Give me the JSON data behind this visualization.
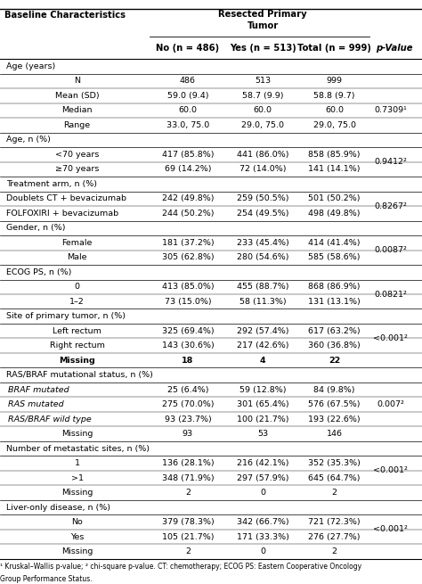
{
  "col_headers_row1": [
    "Baseline Characteristics",
    "Resected Primary\nTumor",
    "",
    "",
    ""
  ],
  "col_headers_row2": [
    "",
    "No (n = 486)",
    "Yes (n = 513)",
    "Total (n = 999)",
    "p-Value"
  ],
  "rows": [
    {
      "label": "Age (years)",
      "type": "section",
      "no": "",
      "yes": "",
      "total": "",
      "pval": ""
    },
    {
      "label": "N",
      "type": "data_center",
      "no": "486",
      "yes": "513",
      "total": "999",
      "pval": ""
    },
    {
      "label": "Mean (SD)",
      "type": "data_center",
      "no": "59.0 (9.4)",
      "yes": "58.7 (9.9)",
      "total": "58.8 (9.7)",
      "pval": "0.7309 1"
    },
    {
      "label": "Median",
      "type": "data_center",
      "no": "60.0",
      "yes": "60.0",
      "total": "60.0",
      "pval": ""
    },
    {
      "label": "Range",
      "type": "data_center",
      "no": "33.0, 75.0",
      "yes": "29.0, 75.0",
      "total": "29.0, 75.0",
      "pval": ""
    },
    {
      "label": "Age, n (%)",
      "type": "section",
      "no": "",
      "yes": "",
      "total": "",
      "pval": ""
    },
    {
      "label": "<70 years",
      "type": "data_center",
      "no": "417 (85.8%)",
      "yes": "441 (86.0%)",
      "total": "858 (85.9%)",
      "pval": "0.9412 2"
    },
    {
      "label": "≥70 years",
      "type": "data_center",
      "no": "69 (14.2%)",
      "yes": "72 (14.0%)",
      "total": "141 (14.1%)",
      "pval": ""
    },
    {
      "label": "Treatment arm, n (%)",
      "type": "section",
      "no": "",
      "yes": "",
      "total": "",
      "pval": ""
    },
    {
      "label": "Doublets CT + bevacizumab",
      "type": "data_left",
      "no": "242 (49.8%)",
      "yes": "259 (50.5%)",
      "total": "501 (50.2%)",
      "pval": "0.8267 2"
    },
    {
      "label": "FOLFOXIRI + bevacizumab",
      "type": "data_left",
      "no": "244 (50.2%)",
      "yes": "254 (49.5%)",
      "total": "498 (49.8%)",
      "pval": ""
    },
    {
      "label": "Gender, n (%)",
      "type": "section",
      "no": "",
      "yes": "",
      "total": "",
      "pval": ""
    },
    {
      "label": "Female",
      "type": "data_center",
      "no": "181 (37.2%)",
      "yes": "233 (45.4%)",
      "total": "414 (41.4%)",
      "pval": "0.0087 2"
    },
    {
      "label": "Male",
      "type": "data_center",
      "no": "305 (62.8%)",
      "yes": "280 (54.6%)",
      "total": "585 (58.6%)",
      "pval": ""
    },
    {
      "label": "ECOG PS, n (%)",
      "type": "section",
      "no": "",
      "yes": "",
      "total": "",
      "pval": ""
    },
    {
      "label": "0",
      "type": "data_center",
      "no": "413 (85.0%)",
      "yes": "455 (88.7%)",
      "total": "868 (86.9%)",
      "pval": "0.0821 2"
    },
    {
      "label": "1–2",
      "type": "data_center",
      "no": "73 (15.0%)",
      "yes": "58 (11.3%)",
      "total": "131 (13.1%)",
      "pval": ""
    },
    {
      "label": "Site of primary tumor, n (%)",
      "type": "section",
      "no": "",
      "yes": "",
      "total": "",
      "pval": ""
    },
    {
      "label": "Left rectum",
      "type": "data_center",
      "no": "325 (69.4%)",
      "yes": "292 (57.4%)",
      "total": "617 (63.2%)",
      "pval": "<0.001 2"
    },
    {
      "label": "Right rectum",
      "type": "data_center",
      "no": "143 (30.6%)",
      "yes": "217 (42.6%)",
      "total": "360 (36.8%)",
      "pval": ""
    },
    {
      "label": "Missing",
      "type": "data_center_bold",
      "no": "18",
      "yes": "4",
      "total": "22",
      "pval": ""
    },
    {
      "label": "RAS/BRAF mutational status, n (%)",
      "type": "section_italic_prefix",
      "no": "",
      "yes": "",
      "total": "",
      "pval": ""
    },
    {
      "label": "BRAF mutated",
      "type": "data_italic",
      "no": "25 (6.4%)",
      "yes": "59 (12.8%)",
      "total": "84 (9.8%)",
      "pval": "0.007 2"
    },
    {
      "label": "RAS mutated",
      "type": "data_italic",
      "no": "275 (70.0%)",
      "yes": "301 (65.4%)",
      "total": "576 (67.5%)",
      "pval": ""
    },
    {
      "label": "RAS/BRAF wild type",
      "type": "data_italic",
      "no": "93 (23.7%)",
      "yes": "100 (21.7%)",
      "total": "193 (22.6%)",
      "pval": ""
    },
    {
      "label": "Missing",
      "type": "data_center",
      "no": "93",
      "yes": "53",
      "total": "146",
      "pval": ""
    },
    {
      "label": "Number of metastatic sites, n (%)",
      "type": "section",
      "no": "",
      "yes": "",
      "total": "",
      "pval": ""
    },
    {
      "label": "1",
      "type": "data_center",
      "no": "136 (28.1%)",
      "yes": "216 (42.1%)",
      "total": "352 (35.3%)",
      "pval": "<0.001 2"
    },
    {
      "label": ">1",
      "type": "data_center",
      "no": "348 (71.9%)",
      "yes": "297 (57.9%)",
      "total": "645 (64.7%)",
      "pval": ""
    },
    {
      "label": "Missing",
      "type": "data_center",
      "no": "2",
      "yes": "0",
      "total": "2",
      "pval": ""
    },
    {
      "label": "Liver-only disease, n (%)",
      "type": "section",
      "no": "",
      "yes": "",
      "total": "",
      "pval": ""
    },
    {
      "label": "No",
      "type": "data_center",
      "no": "379 (78.3%)",
      "yes": "342 (66.7%)",
      "total": "721 (72.3%)",
      "pval": "<0.001 2"
    },
    {
      "label": "Yes",
      "type": "data_center",
      "no": "105 (21.7%)",
      "yes": "171 (33.3%)",
      "total": "276 (27.7%)",
      "pval": ""
    },
    {
      "label": "Missing",
      "type": "data_center",
      "no": "2",
      "yes": "0",
      "total": "2",
      "pval": ""
    }
  ],
  "footnote1": "¹ Kruskal–Wallis p-value; ² chi-square p-value. CT: chemotherapy; ECOG PS: Eastern Cooperative Oncology",
  "footnote2": "Group Performance Status.",
  "bg_color": "#ffffff",
  "text_color": "#000000"
}
